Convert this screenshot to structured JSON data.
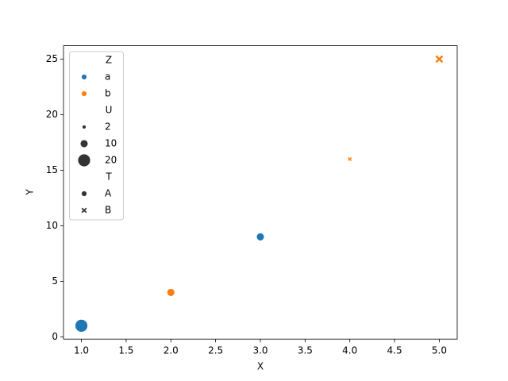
{
  "chart_data": {
    "type": "scatter",
    "x_label": "X",
    "y_label": "Y",
    "x": [
      1,
      2,
      3,
      4,
      5
    ],
    "y": [
      1,
      4,
      9,
      16,
      25
    ],
    "z": [
      "a",
      "b",
      "a",
      "b",
      "b"
    ],
    "u": [
      20,
      10,
      10,
      2,
      10
    ],
    "t": [
      "A",
      "A",
      "A",
      "B",
      "B"
    ],
    "hue": {
      "title": "Z",
      "levels": [
        "a",
        "b"
      ],
      "colors": [
        "#1f77b4",
        "#ff7f0e"
      ]
    },
    "size": {
      "title": "U",
      "levels": [
        2,
        10,
        20
      ]
    },
    "style": {
      "title": "T",
      "levels": [
        "A",
        "B"
      ],
      "markers": [
        "o",
        "x"
      ]
    },
    "xlim": [
      0.8,
      5.2
    ],
    "xticks": [
      {
        "value": 1,
        "label": "1.0"
      },
      {
        "value": 1.5,
        "label": "1.5"
      },
      {
        "value": 2,
        "label": "2.0"
      },
      {
        "value": 2.5,
        "label": "2.5"
      },
      {
        "value": 3,
        "label": "3.0"
      },
      {
        "value": 3.5,
        "label": "3.5"
      },
      {
        "value": 4,
        "label": "4.0"
      },
      {
        "value": 4.5,
        "label": "4.5"
      },
      {
        "value": 5,
        "label": "5.0"
      }
    ],
    "ylim": [
      -0.2,
      26.2
    ],
    "yticks": [
      0,
      5,
      10,
      15,
      20,
      25
    ],
    "legend": "upper left"
  }
}
